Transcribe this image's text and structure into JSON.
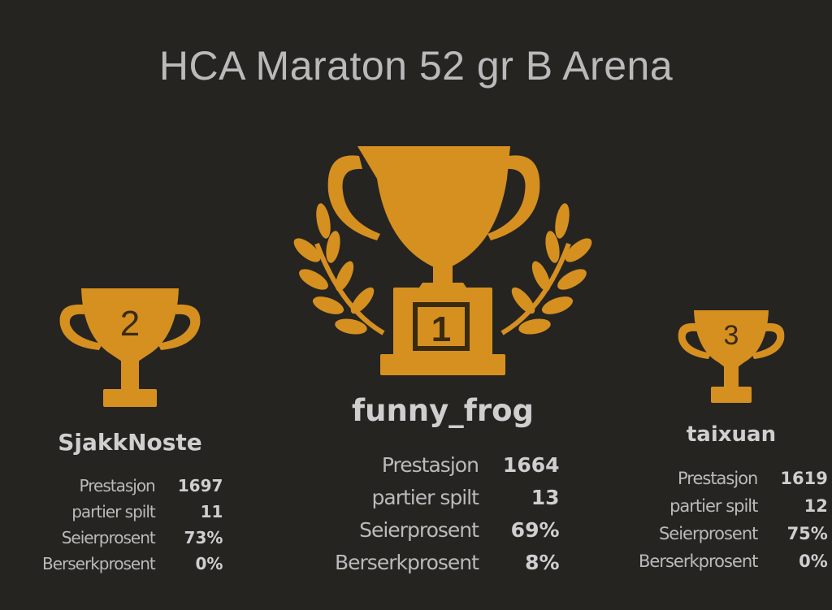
{
  "tournament_title": "HCA Maraton 52 gr B Arena",
  "podium": {
    "first": {
      "rank": "1",
      "name": "funny_frog",
      "stats": [
        {
          "label": "Prestasjon",
          "value": "1664"
        },
        {
          "label": "partier spilt",
          "value": "13"
        },
        {
          "label": "Seierprosent",
          "value": "69%"
        },
        {
          "label": "Berserkprosent",
          "value": "8%"
        }
      ]
    },
    "second": {
      "rank": "2",
      "name": "SjakkNoste",
      "stats": [
        {
          "label": "Prestasjon",
          "value": "1697"
        },
        {
          "label": "partier spilt",
          "value": "11"
        },
        {
          "label": "Seierprosent",
          "value": "73%"
        },
        {
          "label": "Berserkprosent",
          "value": "0%"
        }
      ]
    },
    "third": {
      "rank": "3",
      "name": "taixuan",
      "stats": [
        {
          "label": "Prestasjon",
          "value": "1619"
        },
        {
          "label": "partier spilt",
          "value": "12"
        },
        {
          "label": "Seierprosent",
          "value": "75%"
        },
        {
          "label": "Berserkprosent",
          "value": "0%"
        }
      ]
    }
  },
  "colors": {
    "background": "#262421",
    "trophy_gold": "#d59020",
    "trophy_number": "#3a2a10",
    "text": "#bababa"
  },
  "icons": {
    "first": "trophy-with-laurels-icon",
    "second": "trophy-icon",
    "third": "trophy-icon"
  }
}
